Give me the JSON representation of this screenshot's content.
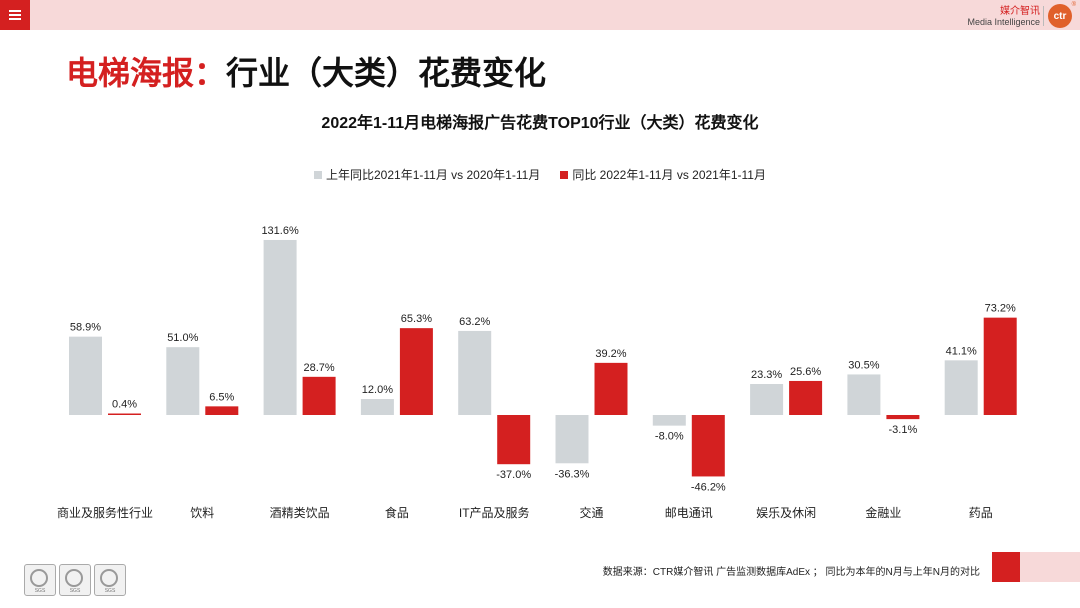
{
  "header": {
    "brand_cn": "媒介智讯",
    "brand_en": "Media Intelligence",
    "logo_text": "ctr",
    "logo_mark": "®"
  },
  "page_title": {
    "highlight": "电梯海报：",
    "rest": "行业（大类）花费变化"
  },
  "footer": {
    "source": "数据来源：CTR媒介智讯 广告监测数据库AdEx ； 同比为本年的N月与上年N月的对比",
    "seal_label": "SGS"
  },
  "colors": {
    "series1": "#d0d5d8",
    "series2": "#d42020",
    "accent": "#d42020",
    "band": "#f7d9d9"
  },
  "chart_data": {
    "type": "bar",
    "title": "2022年1-11月电梯海报广告花费TOP10行业（大类）花费变化",
    "legend_position": "top",
    "categories": [
      "商业及服务性行业",
      "饮料",
      "酒精类饮品",
      "食品",
      "IT产品及服务",
      "交通",
      "邮电通讯",
      "娱乐及休闲",
      "金融业",
      "药品"
    ],
    "series": [
      {
        "name": "上年同比2021年1-11月 vs 2020年1-11月",
        "values": [
          58.9,
          51.0,
          131.6,
          12.0,
          63.2,
          -36.3,
          -8.0,
          23.3,
          30.5,
          41.1
        ]
      },
      {
        "name": "同比 2022年1-11月 vs 2021年1-11月",
        "values": [
          0.4,
          6.5,
          28.7,
          65.3,
          -37.0,
          39.2,
          -46.2,
          25.6,
          -3.1,
          73.2
        ]
      }
    ],
    "value_labels": [
      [
        "58.9%",
        "51.0%",
        "131.6%",
        "12.0%",
        "63.2%",
        "-36.3%",
        "-8.0%",
        "23.3%",
        "30.5%",
        "41.1%"
      ],
      [
        "0.4%",
        "6.5%",
        "28.7%",
        "65.3%",
        "-37.0%",
        "39.2%",
        "-46.2%",
        "25.6%",
        "-3.1%",
        "73.2%"
      ]
    ],
    "unit": "%",
    "grid": false
  }
}
